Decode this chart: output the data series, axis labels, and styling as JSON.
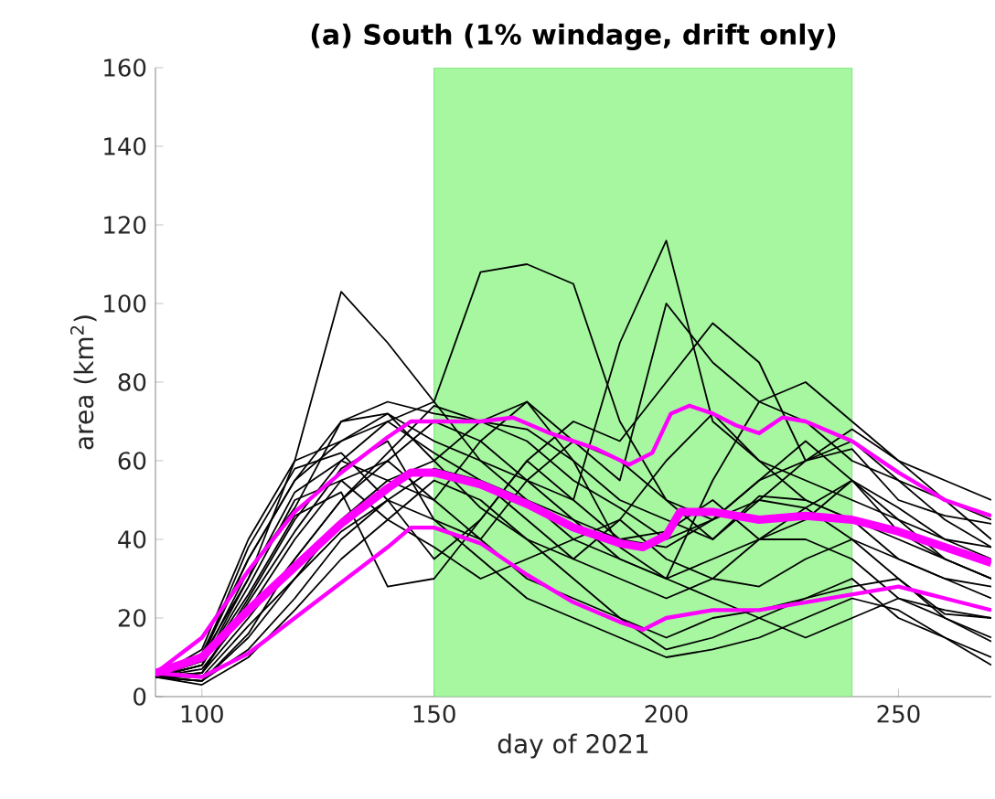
{
  "chart_data": {
    "type": "line",
    "title": "(a) South (1% windage, drift only)",
    "xlabel": "day of 2021",
    "ylabel": "area (km$^{2}$)",
    "xlim": [
      90,
      270
    ],
    "ylim": [
      0,
      160
    ],
    "xticks": [
      100,
      150,
      200,
      250
    ],
    "yticks": [
      0,
      20,
      40,
      60,
      80,
      100,
      120,
      140,
      160
    ],
    "grid": false,
    "marker": "none",
    "line_style": "solid",
    "bands": [
      {
        "axis": "x",
        "from": 150,
        "to": 240,
        "color": "#a6f7a0"
      }
    ],
    "x": [
      90,
      100,
      110,
      120,
      130,
      140,
      150,
      160,
      170,
      180,
      190,
      200,
      210,
      220,
      230,
      240,
      250,
      260,
      270
    ],
    "series": [
      {
        "color": "#000000",
        "values": [
          5,
          8,
          30,
          60,
          103,
          90,
          75,
          60,
          50,
          45,
          40,
          38,
          45,
          50,
          48,
          40,
          30,
          21,
          20
        ]
      },
      {
        "color": "#000000",
        "values": [
          5,
          6,
          25,
          45,
          60,
          70,
          75,
          108,
          110,
          105,
          70,
          50,
          40,
          51,
          50,
          45,
          40,
          35,
          30
        ]
      },
      {
        "color": "#000000",
        "values": [
          5,
          10,
          35,
          55,
          70,
          72,
          65,
          60,
          55,
          50,
          90,
          116,
          70,
          60,
          55,
          50,
          45,
          40,
          35
        ]
      },
      {
        "color": "#000000",
        "values": [
          5,
          4,
          15,
          30,
          45,
          55,
          60,
          70,
          75,
          65,
          55,
          100,
          85,
          75,
          70,
          60,
          55,
          50,
          45
        ]
      },
      {
        "color": "#000000",
        "values": [
          5,
          12,
          40,
          60,
          65,
          70,
          62,
          55,
          45,
          35,
          30,
          25,
          30,
          40,
          45,
          55,
          48,
          40,
          38
        ]
      },
      {
        "color": "#000000",
        "values": [
          5,
          3,
          10,
          22,
          35,
          45,
          55,
          50,
          40,
          30,
          20,
          15,
          20,
          22,
          25,
          28,
          30,
          20,
          15
        ]
      },
      {
        "color": "#000000",
        "values": [
          5,
          8,
          28,
          50,
          55,
          60,
          50,
          40,
          30,
          25,
          20,
          12,
          15,
          20,
          25,
          30,
          20,
          15,
          10
        ]
      },
      {
        "color": "#000000",
        "values": [
          5,
          6,
          20,
          35,
          50,
          60,
          70,
          65,
          55,
          45,
          35,
          30,
          55,
          75,
          80,
          70,
          60,
          50,
          40
        ]
      },
      {
        "color": "#000000",
        "values": [
          5,
          10,
          38,
          58,
          62,
          50,
          35,
          45,
          60,
          70,
          65,
          80,
          95,
          85,
          60,
          65,
          55,
          45,
          38
        ]
      },
      {
        "color": "#000000",
        "values": [
          5,
          4,
          12,
          25,
          40,
          50,
          45,
          35,
          25,
          20,
          15,
          10,
          12,
          15,
          20,
          25,
          22,
          15,
          8
        ]
      },
      {
        "color": "#000000",
        "values": [
          5,
          9,
          32,
          48,
          70,
          75,
          72,
          70,
          68,
          60,
          50,
          45,
          40,
          50,
          60,
          68,
          60,
          55,
          50
        ]
      },
      {
        "color": "#000000",
        "values": [
          5,
          7,
          22,
          40,
          55,
          45,
          38,
          30,
          35,
          40,
          45,
          35,
          30,
          28,
          35,
          40,
          35,
          30,
          25
        ]
      },
      {
        "color": "#000000",
        "values": [
          5,
          5,
          18,
          30,
          42,
          50,
          58,
          55,
          50,
          40,
          35,
          30,
          25,
          20,
          15,
          20,
          25,
          22,
          20
        ]
      },
      {
        "color": "#000000",
        "values": [
          5,
          11,
          35,
          55,
          65,
          72,
          60,
          48,
          40,
          35,
          45,
          60,
          72,
          60,
          50,
          45,
          35,
          30,
          28
        ]
      },
      {
        "color": "#000000",
        "values": [
          5,
          6,
          24,
          42,
          58,
          65,
          45,
          40,
          55,
          65,
          60,
          50,
          45,
          55,
          65,
          55,
          45,
          35,
          30
        ]
      },
      {
        "color": "#000000",
        "values": [
          5,
          8,
          26,
          46,
          52,
          28,
          30,
          45,
          60,
          50,
          40,
          42,
          50,
          40,
          40,
          35,
          25,
          20,
          14
        ]
      },
      {
        "color": "#000000",
        "values": [
          5,
          4,
          16,
          35,
          50,
          62,
          74,
          70,
          65,
          55,
          48,
          40,
          45,
          55,
          60,
          63,
          50,
          46,
          44
        ]
      },
      {
        "color": "#000000",
        "values": [
          5,
          10,
          30,
          52,
          60,
          55,
          50,
          65,
          75,
          60,
          38,
          30,
          35,
          40,
          48,
          55,
          42,
          35,
          30
        ]
      },
      {
        "color": "#ff00ff",
        "x": [
          90,
          100,
          110,
          120,
          130,
          140,
          145,
          150,
          160,
          167,
          175,
          185,
          192,
          197,
          201,
          205,
          210,
          215,
          220,
          225,
          230,
          240,
          250,
          260,
          270
        ],
        "values": [
          6,
          15,
          32,
          47,
          57,
          66,
          70,
          70,
          70,
          71,
          67,
          63,
          59,
          62,
          72,
          74,
          72,
          69,
          67,
          71,
          70,
          65,
          57,
          50,
          46
        ]
      },
      {
        "color": "#ff00ff",
        "x": [
          90,
          100,
          110,
          120,
          130,
          140,
          145,
          150,
          160,
          170,
          180,
          190,
          195,
          200,
          210,
          220,
          230,
          240,
          250,
          260,
          270
        ],
        "values": [
          6,
          5,
          11,
          20,
          29,
          38,
          43,
          43,
          39,
          31,
          24,
          19,
          17,
          20,
          22,
          22,
          24,
          26,
          28,
          25,
          22
        ]
      },
      {
        "color": "#ff00ff",
        "x": [
          90,
          100,
          110,
          120,
          130,
          140,
          145,
          150,
          160,
          170,
          180,
          190,
          195,
          200,
          203,
          210,
          220,
          230,
          240,
          250,
          260,
          270
        ],
        "values": [
          6,
          10,
          22,
          33,
          44,
          53,
          57,
          57,
          54,
          49,
          43,
          39,
          38,
          41,
          47,
          47,
          45,
          46,
          45,
          42,
          38,
          34
        ]
      }
    ]
  }
}
